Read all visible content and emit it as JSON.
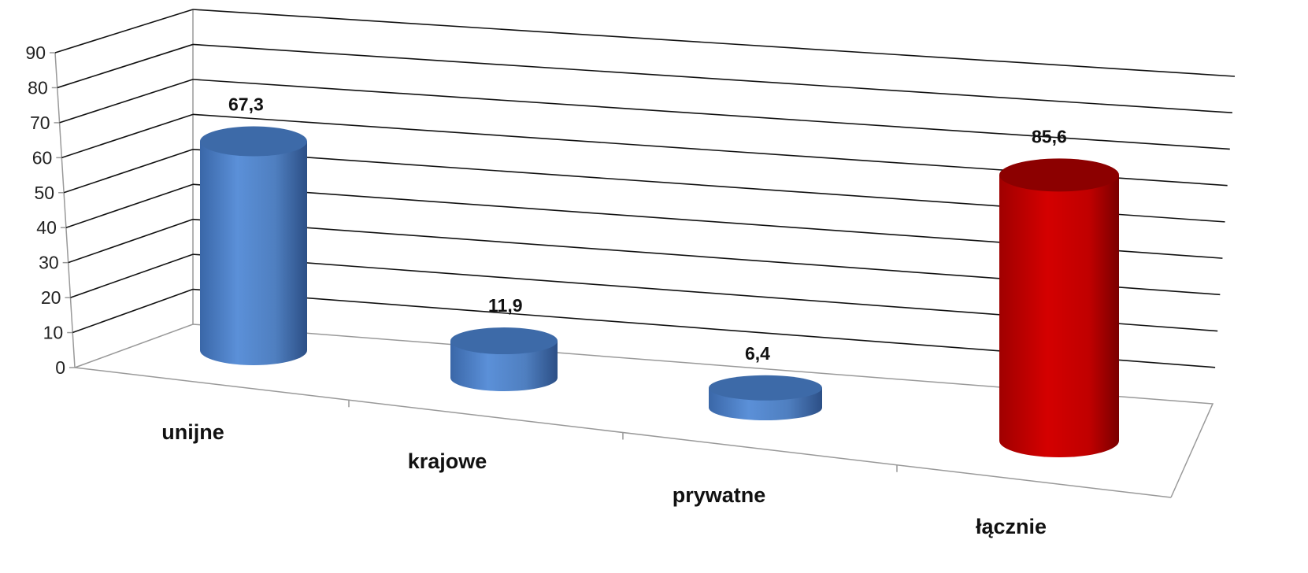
{
  "chart_data": {
    "type": "bar",
    "categories": [
      "unijne",
      "krajowe",
      "prywatne",
      "łącznie"
    ],
    "values": [
      67.3,
      11.9,
      6.4,
      85.6
    ],
    "value_labels": [
      "67,3",
      "11,9",
      "6,4",
      "85,6"
    ],
    "ylim": [
      0,
      90
    ],
    "yticks": [
      0,
      10,
      20,
      30,
      40,
      50,
      60,
      70,
      80,
      90
    ],
    "ytick_labels": [
      "0",
      "10",
      "20",
      "30",
      "40",
      "50",
      "60",
      "70",
      "80",
      "90"
    ],
    "grid": true,
    "legend": "none",
    "bar_shape": "cylinder",
    "colors": [
      "#4f81bd",
      "#4f81bd",
      "#4f81bd",
      "#c00000"
    ]
  }
}
